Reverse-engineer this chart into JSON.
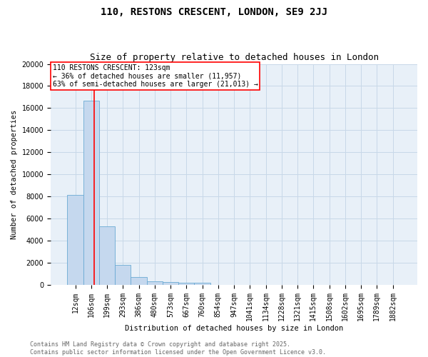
{
  "title": "110, RESTONS CRESCENT, LONDON, SE9 2JJ",
  "subtitle": "Size of property relative to detached houses in London",
  "xlabel": "Distribution of detached houses by size in London",
  "ylabel": "Number of detached properties",
  "bar_color": "#c5d8ee",
  "bar_edge_color": "#6aaad4",
  "grid_color": "#c8d8e8",
  "background_color": "#e8f0f8",
  "categories": [
    "12sqm",
    "106sqm",
    "199sqm",
    "293sqm",
    "386sqm",
    "480sqm",
    "573sqm",
    "667sqm",
    "760sqm",
    "854sqm",
    "947sqm",
    "1041sqm",
    "1134sqm",
    "1228sqm",
    "1321sqm",
    "1415sqm",
    "1508sqm",
    "1602sqm",
    "1695sqm",
    "1789sqm",
    "1882sqm"
  ],
  "values": [
    8100,
    16700,
    5300,
    1800,
    680,
    280,
    220,
    170,
    160,
    0,
    0,
    0,
    0,
    0,
    0,
    0,
    0,
    0,
    0,
    0,
    0
  ],
  "ylim": [
    0,
    20000
  ],
  "yticks": [
    0,
    2000,
    4000,
    6000,
    8000,
    10000,
    12000,
    14000,
    16000,
    18000,
    20000
  ],
  "red_line_x": 1.18,
  "annotation_text": "110 RESTONS CRESCENT: 123sqm\n← 36% of detached houses are smaller (11,957)\n63% of semi-detached houses are larger (21,013) →",
  "footer_text": "Contains HM Land Registry data © Crown copyright and database right 2025.\nContains public sector information licensed under the Open Government Licence v3.0.",
  "title_fontsize": 10,
  "subtitle_fontsize": 9,
  "label_fontsize": 7.5,
  "tick_fontsize": 7,
  "annotation_fontsize": 7,
  "footer_fontsize": 6
}
